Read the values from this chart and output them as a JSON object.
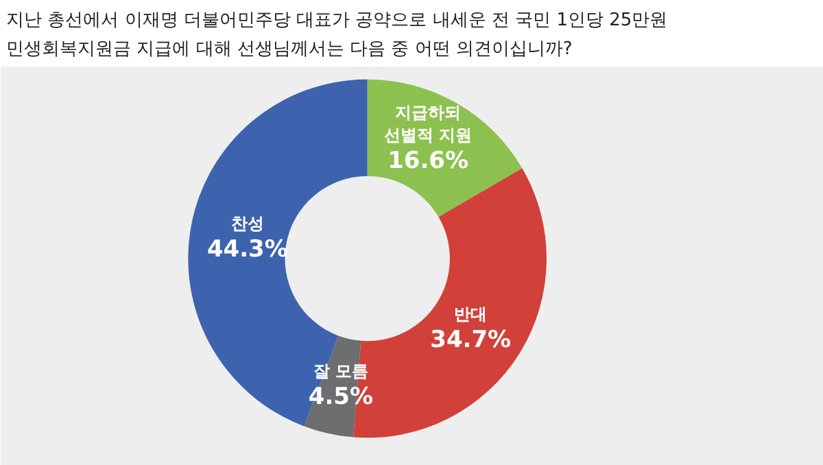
{
  "chart_data": {
    "type": "donut",
    "title": "지난 총선에서 이재명 더불어민주당 대표가 공약으로 내세운 전 국민 1인당 25만원\n민생회복지원금 지급에  대해 선생님께서는 다음 중 어떤 의견이십니까?",
    "categories": [
      "지급하되\n선별적 지원",
      "반대",
      "잘 모름",
      "찬성"
    ],
    "values": [
      16.6,
      34.7,
      4.5,
      44.3
    ],
    "value_labels": [
      "16.6%",
      "34.7%",
      "4.5%",
      "44.3%"
    ],
    "colors": [
      "#8dc14f",
      "#d2403a",
      "#6d6e70",
      "#3d63ae"
    ]
  }
}
